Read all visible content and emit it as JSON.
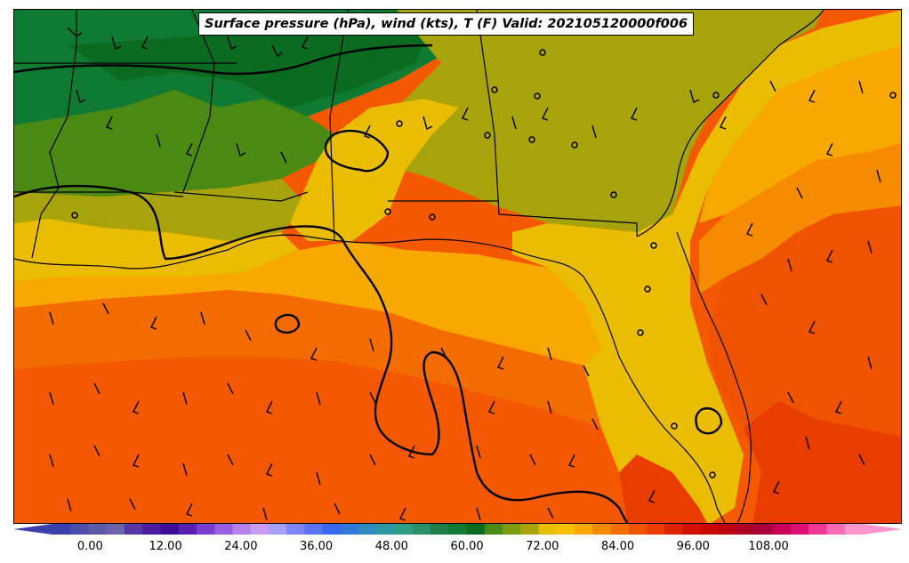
{
  "title": "Surface pressure (hPa), wind (kts), T (F) Valid: 202105120000f006",
  "colorbar": {
    "tick_labels": [
      "0.00",
      "12.00",
      "24.00",
      "36.00",
      "48.00",
      "60.00",
      "72.00",
      "84.00",
      "96.00",
      "108.00"
    ],
    "ticks": [
      0,
      12,
      24,
      36,
      48,
      60,
      72,
      84,
      96,
      108
    ],
    "min": -6,
    "max": 123,
    "step": 3,
    "colors": [
      "#3b3fae",
      "#4d4ea9",
      "#5a5aa8",
      "#6a63a8",
      "#5637a6",
      "#4c1b9f",
      "#3e0d95",
      "#5a1fb2",
      "#7a3ecf",
      "#9a5ee0",
      "#b580ec",
      "#c89cf4",
      "#a79ef7",
      "#7f86f5",
      "#5a73f2",
      "#3867f0",
      "#2f78d8",
      "#2f8ac0",
      "#2f97a4",
      "#2f9c86",
      "#2a8f69",
      "#1f7f46",
      "#137a33",
      "#0a6b1e",
      "#4a8a14",
      "#7e9c0e",
      "#aaa309",
      "#e8bd03",
      "#f7c100",
      "#f7a900",
      "#f78b00",
      "#f46c00",
      "#ef5300",
      "#e93d00",
      "#de2300",
      "#d61000",
      "#cb0700",
      "#bd0010",
      "#ad0025",
      "#a8003d",
      "#c70055",
      "#dd0f72",
      "#ee3a96",
      "#f76ab4",
      "#fb95cc"
    ]
  },
  "legend_extents": {
    "over_color": "#fb95cc",
    "under_color": "#3b3fae"
  }
}
